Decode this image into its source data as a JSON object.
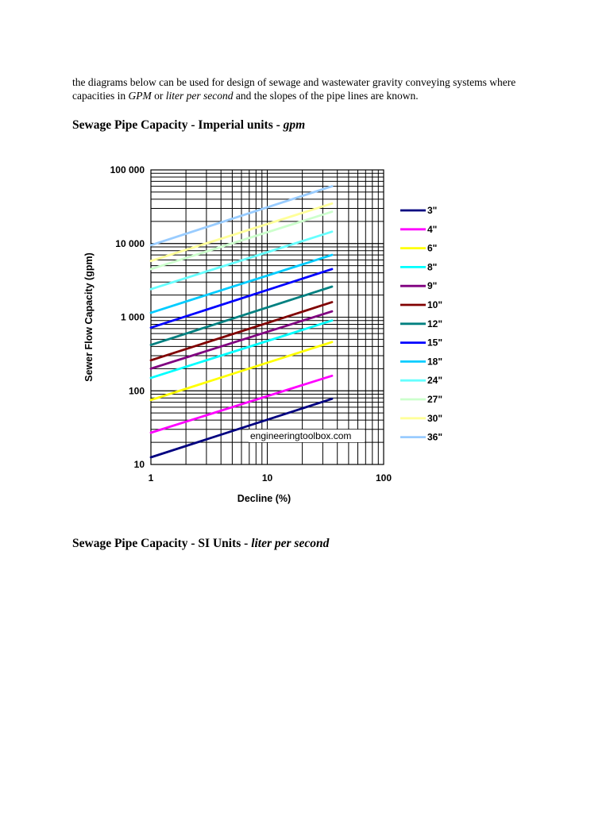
{
  "intro": {
    "part1": "the diagrams below can be used for design of sewage and wastewater gravity conveying systems where capacities in",
    "gpm": "GPM",
    "or": "or",
    "lps": "liter per second",
    "part2": "and the slopes of the pipe lines are known."
  },
  "heading1": {
    "text": "Sewage Pipe Capacity - Imperial units -",
    "unit": "gpm"
  },
  "heading2": {
    "text": "Sewage Pipe Capacity - SI Units -",
    "unit": "liter per second"
  },
  "chart_data": {
    "type": "line",
    "xlabel": "Decline (%)",
    "ylabel": "Sewer Flow Capacity (gpm)",
    "x_scale": "log",
    "y_scale": "log",
    "xlim": [
      1,
      100
    ],
    "ylim": [
      10,
      100000
    ],
    "x_ticks": [
      1,
      10,
      100
    ],
    "x_tick_labels": [
      "1",
      "10",
      "100"
    ],
    "y_ticks": [
      10,
      100,
      1000,
      10000,
      100000
    ],
    "y_tick_labels": [
      "10",
      "100",
      "1 000",
      "10 000",
      "100 000"
    ],
    "grid": true,
    "legend_position": "right",
    "watermark": "engineeringtoolbox.com",
    "series": [
      {
        "name": "3\"",
        "color": "#000080",
        "x": [
          1,
          36
        ],
        "y": [
          12.5,
          78
        ]
      },
      {
        "name": "4\"",
        "color": "#ff00ff",
        "x": [
          1,
          36
        ],
        "y": [
          27,
          160
        ]
      },
      {
        "name": "6\"",
        "color": "#ffff00",
        "x": [
          1,
          36
        ],
        "y": [
          75,
          460
        ]
      },
      {
        "name": "8\"",
        "color": "#00ffff",
        "x": [
          1,
          36
        ],
        "y": [
          150,
          900
        ]
      },
      {
        "name": "9\"",
        "color": "#800080",
        "x": [
          1,
          36
        ],
        "y": [
          200,
          1200
        ]
      },
      {
        "name": "10\"",
        "color": "#800000",
        "x": [
          1,
          36
        ],
        "y": [
          260,
          1600
        ]
      },
      {
        "name": "12\"",
        "color": "#008080",
        "x": [
          1,
          36
        ],
        "y": [
          420,
          2600
        ]
      },
      {
        "name": "15\"",
        "color": "#0000ff",
        "x": [
          1,
          36
        ],
        "y": [
          720,
          4500
        ]
      },
      {
        "name": "18\"",
        "color": "#00ccff",
        "x": [
          1,
          36
        ],
        "y": [
          1150,
          7000
        ]
      },
      {
        "name": "24\"",
        "color": "#66ffff",
        "x": [
          1,
          36
        ],
        "y": [
          2400,
          14500
        ]
      },
      {
        "name": "27\"",
        "color": "#ccffcc",
        "x": [
          1,
          36
        ],
        "y": [
          4500,
          27000
        ]
      },
      {
        "name": "30\"",
        "color": "#ffff99",
        "x": [
          1,
          36
        ],
        "y": [
          5800,
          35000
        ]
      },
      {
        "name": "36\"",
        "color": "#99ccff",
        "x": [
          1,
          36
        ],
        "y": [
          9500,
          60000
        ]
      }
    ]
  }
}
